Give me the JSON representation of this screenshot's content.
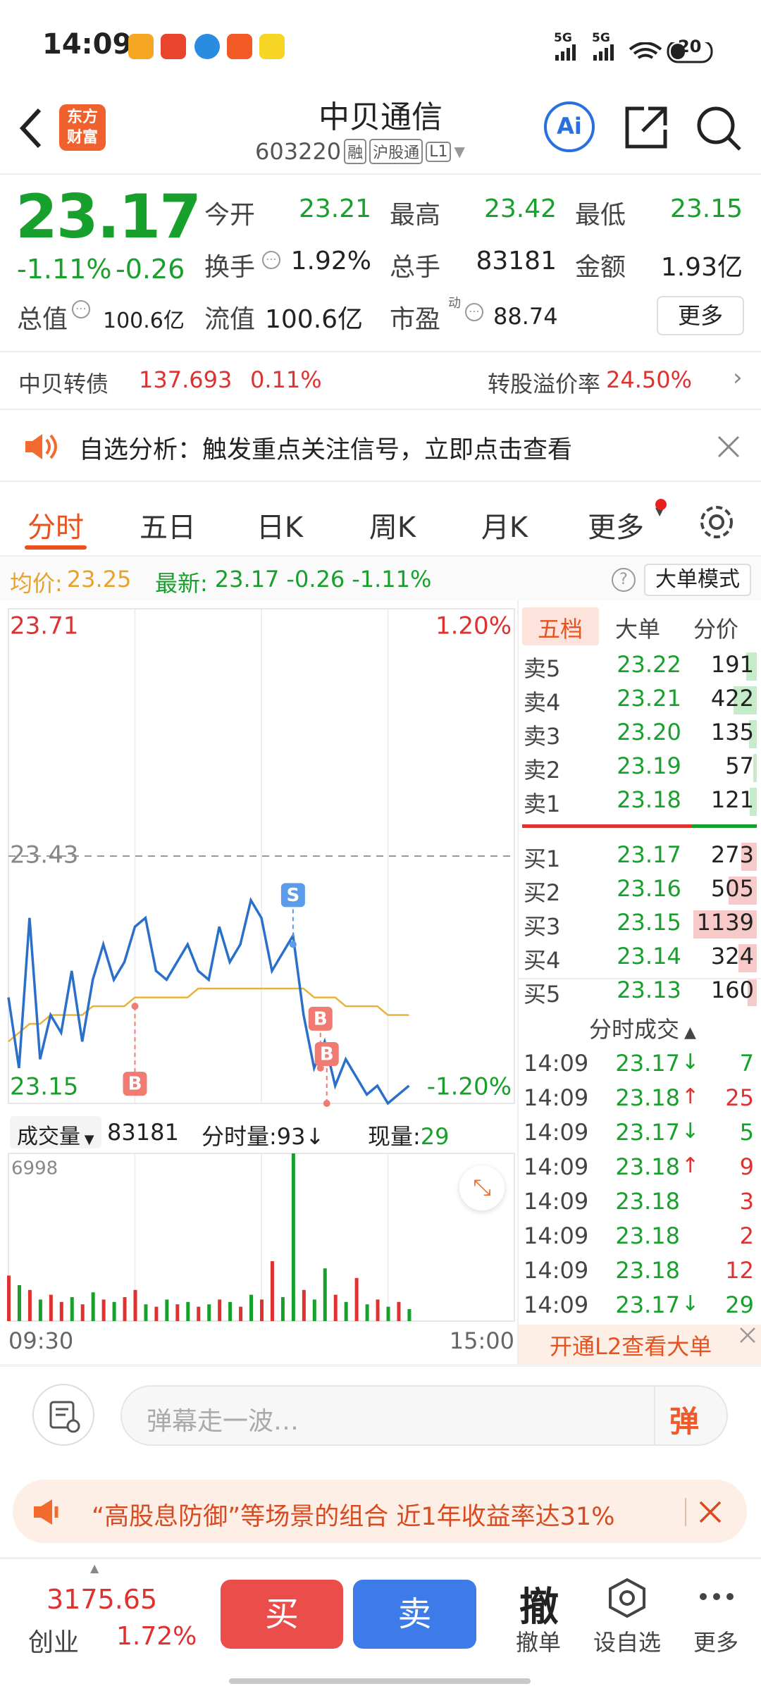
{
  "status_bar": {
    "time": "14:09",
    "network": [
      "5G",
      "5G"
    ],
    "battery": "20"
  },
  "header": {
    "logo": [
      "东方",
      "财富"
    ],
    "title": "中贝通信",
    "code": "603220",
    "tags": [
      "融",
      "沪股通",
      "L1"
    ],
    "ai": "Ai"
  },
  "quote": {
    "price": "23.17",
    "change_pct": "-1.11%",
    "change": "-0.26",
    "up_color": "#e03131",
    "down_color": "#18a02c",
    "stats": [
      {
        "label": "今开",
        "value": "23.21",
        "color": "#18a02c"
      },
      {
        "label": "最高",
        "value": "23.42",
        "color": "#18a02c"
      },
      {
        "label": "最低",
        "value": "23.15",
        "color": "#18a02c"
      },
      {
        "label": "换手",
        "value": "1.92%",
        "color": "#222222"
      },
      {
        "label": "总手",
        "value": "83181",
        "color": "#222222"
      },
      {
        "label": "金额",
        "value": "1.93亿",
        "color": "#222222"
      }
    ],
    "total_value": {
      "label": "总值",
      "value": "100.6亿"
    },
    "float_value": {
      "label": "流值",
      "value": "100.6亿"
    },
    "pe": {
      "label": "市盈",
      "tag": "动",
      "value": "88.74"
    },
    "more": "更多"
  },
  "bond": {
    "name": "中贝转债",
    "price": "137.693",
    "pct": "0.11%",
    "premium_label": "转股溢价率",
    "premium": "24.50%"
  },
  "notice": "自选分析：触发重点关注信号，立即点击查看",
  "tabs": [
    "分时",
    "五日",
    "日K",
    "周K",
    "月K",
    "更多"
  ],
  "info_bar": {
    "avg_label": "均价:",
    "avg": "23.25",
    "latest_label": "最新:",
    "latest": "23.17",
    "change": "-0.26",
    "pct": "-1.11%",
    "mode": "大单模式"
  },
  "volume_bar": {
    "label": "成交量",
    "total": "83181",
    "minute_label": "分时量:",
    "minute": "93",
    "minute_arrow": "↓",
    "current_label": "现量:",
    "current": "29"
  },
  "chart_data": [
    {
      "type": "line",
      "ylim": [
        23.15,
        23.71
      ],
      "yticks": [
        23.15,
        23.43,
        23.71
      ],
      "y2lim": [
        -1.2,
        1.2
      ],
      "y2ticks": [
        {
          "value": -1.2,
          "label": "-1.20%"
        },
        {
          "value": 1.2,
          "label": "1.20%"
        }
      ],
      "xlim": [
        0,
        240
      ],
      "xticks": [
        {
          "value": 0,
          "label": "09:30"
        },
        {
          "value": 240,
          "label": "15:00"
        }
      ],
      "x": [
        0,
        5,
        10,
        15,
        20,
        25,
        30,
        35,
        40,
        45,
        50,
        55,
        60,
        65,
        70,
        75,
        80,
        85,
        90,
        95,
        100,
        105,
        110,
        115,
        120,
        125,
        130,
        135,
        140,
        145,
        150,
        155,
        160,
        165,
        170,
        175,
        180,
        185,
        190
      ],
      "series": [
        {
          "color": "#2a6fc9",
          "values": [
            23.27,
            23.19,
            23.36,
            23.2,
            23.25,
            23.23,
            23.3,
            23.22,
            23.29,
            23.33,
            23.29,
            23.31,
            23.35,
            23.36,
            23.3,
            23.29,
            23.31,
            23.33,
            23.3,
            23.29,
            23.35,
            23.31,
            23.33,
            23.38,
            23.36,
            23.3,
            23.32,
            23.34,
            23.25,
            23.19,
            23.22,
            23.17,
            23.2,
            23.18,
            23.16,
            23.17,
            23.15,
            23.16,
            23.17
          ]
        },
        {
          "color": "#e8b33a",
          "values": [
            23.22,
            23.23,
            23.24,
            23.24,
            23.25,
            23.25,
            23.25,
            23.25,
            23.26,
            23.26,
            23.26,
            23.26,
            23.27,
            23.27,
            23.27,
            23.27,
            23.27,
            23.27,
            23.28,
            23.28,
            23.28,
            23.28,
            23.28,
            23.28,
            23.28,
            23.28,
            23.28,
            23.28,
            23.28,
            23.27,
            23.27,
            23.27,
            23.26,
            23.26,
            23.26,
            23.26,
            23.25,
            23.25,
            23.25
          ]
        }
      ],
      "annotations": [
        {
          "x": 60,
          "y": 23.26,
          "label": "B",
          "position": "below",
          "color": "#ef7b73"
        },
        {
          "x": 135,
          "y": 23.33,
          "label": "S",
          "position": "above",
          "color": "#5b9bea"
        },
        {
          "x": 148,
          "y": 23.19,
          "label": "B",
          "position": "above",
          "color": "#ef7b73"
        },
        {
          "x": 151,
          "y": 23.15,
          "label": "B",
          "position": "above",
          "color": "#ef7b73"
        }
      ],
      "grid": true
    },
    {
      "type": "bar",
      "ylim": [
        0,
        6998
      ],
      "yticks": [
        6998
      ],
      "xlim": [
        0,
        240
      ],
      "x": [
        0,
        5,
        10,
        15,
        20,
        25,
        30,
        35,
        40,
        45,
        50,
        55,
        60,
        65,
        70,
        75,
        80,
        85,
        90,
        95,
        100,
        105,
        110,
        115,
        120,
        125,
        130,
        135,
        140,
        145,
        150,
        155,
        160,
        165,
        170,
        175,
        180,
        185,
        190
      ],
      "values": [
        1900,
        1500,
        1300,
        900,
        1100,
        800,
        1000,
        700,
        1200,
        900,
        800,
        1000,
        1300,
        700,
        600,
        900,
        700,
        800,
        600,
        700,
        900,
        800,
        600,
        1100,
        900,
        2500,
        1000,
        6998,
        1300,
        900,
        2200,
        1100,
        800,
        1800,
        700,
        900,
        600,
        800,
        500
      ],
      "colors": [
        "#e03131",
        "#18a02c",
        "#e03131",
        "#18a02c",
        "#e03131",
        "#e03131",
        "#18a02c",
        "#e03131",
        "#18a02c",
        "#e03131",
        "#18a02c",
        "#e03131",
        "#e03131",
        "#18a02c",
        "#e03131",
        "#18a02c",
        "#e03131",
        "#18a02c",
        "#e03131",
        "#18a02c",
        "#e03131",
        "#18a02c",
        "#e03131",
        "#18a02c",
        "#e03131",
        "#e03131",
        "#18a02c",
        "#18a02c",
        "#e03131",
        "#18a02c",
        "#18a02c",
        "#e03131",
        "#18a02c",
        "#e03131",
        "#18a02c",
        "#e03131",
        "#18a02c",
        "#e03131",
        "#18a02c"
      ]
    }
  ],
  "order_book": {
    "tabs": [
      "五档",
      "大单",
      "分价"
    ],
    "ask_bar_color": "#c4ecc9",
    "bid_bar_color": "#f8c9c9",
    "asks": [
      {
        "label": "卖5",
        "price": "23.22",
        "volume": 191
      },
      {
        "label": "卖4",
        "price": "23.21",
        "volume": 422
      },
      {
        "label": "卖3",
        "price": "23.20",
        "volume": 135
      },
      {
        "label": "卖2",
        "price": "23.19",
        "volume": 57
      },
      {
        "label": "卖1",
        "price": "23.18",
        "volume": 121
      }
    ],
    "bids": [
      {
        "label": "买1",
        "price": "23.17",
        "volume": 273
      },
      {
        "label": "买2",
        "price": "23.16",
        "volume": 505
      },
      {
        "label": "买3",
        "price": "23.15",
        "volume": 1139
      },
      {
        "label": "买4",
        "price": "23.14",
        "volume": 324
      },
      {
        "label": "买5",
        "price": "23.13",
        "volume": 160
      }
    ],
    "trades_title": "分时成交",
    "trades": [
      {
        "time": "14:09",
        "price": "23.17",
        "arrow": "↓",
        "volume": 7,
        "color": "#18a02c"
      },
      {
        "time": "14:09",
        "price": "23.18",
        "arrow": "↑",
        "volume": 25,
        "color": "#e03131"
      },
      {
        "time": "14:09",
        "price": "23.17",
        "arrow": "↓",
        "volume": 5,
        "color": "#18a02c"
      },
      {
        "time": "14:09",
        "price": "23.18",
        "arrow": "↑",
        "volume": 9,
        "color": "#e03131"
      },
      {
        "time": "14:09",
        "price": "23.18",
        "volume": 3,
        "color": "#e03131"
      },
      {
        "time": "14:09",
        "price": "23.18",
        "volume": 2,
        "color": "#e03131"
      },
      {
        "time": "14:09",
        "price": "23.18",
        "volume": 12,
        "color": "#e03131"
      },
      {
        "time": "14:09",
        "price": "23.17",
        "arrow": "↓",
        "volume": 29,
        "color": "#18a02c"
      }
    ],
    "l2_banner": "开通L2查看大单"
  },
  "comment": {
    "placeholder": "弹幕走一波…",
    "button": "弹"
  },
  "ad": "“高股息防御”等场景的组合 近1年收益率达31%",
  "bottom_bar": {
    "index_value": "3175.65",
    "index_name": "创业",
    "index_pct": "1.72%",
    "buy": "买",
    "sell": "卖",
    "cancel_icon": "撤",
    "cancel": "撤单",
    "watch": "设自选",
    "more": "更多"
  }
}
